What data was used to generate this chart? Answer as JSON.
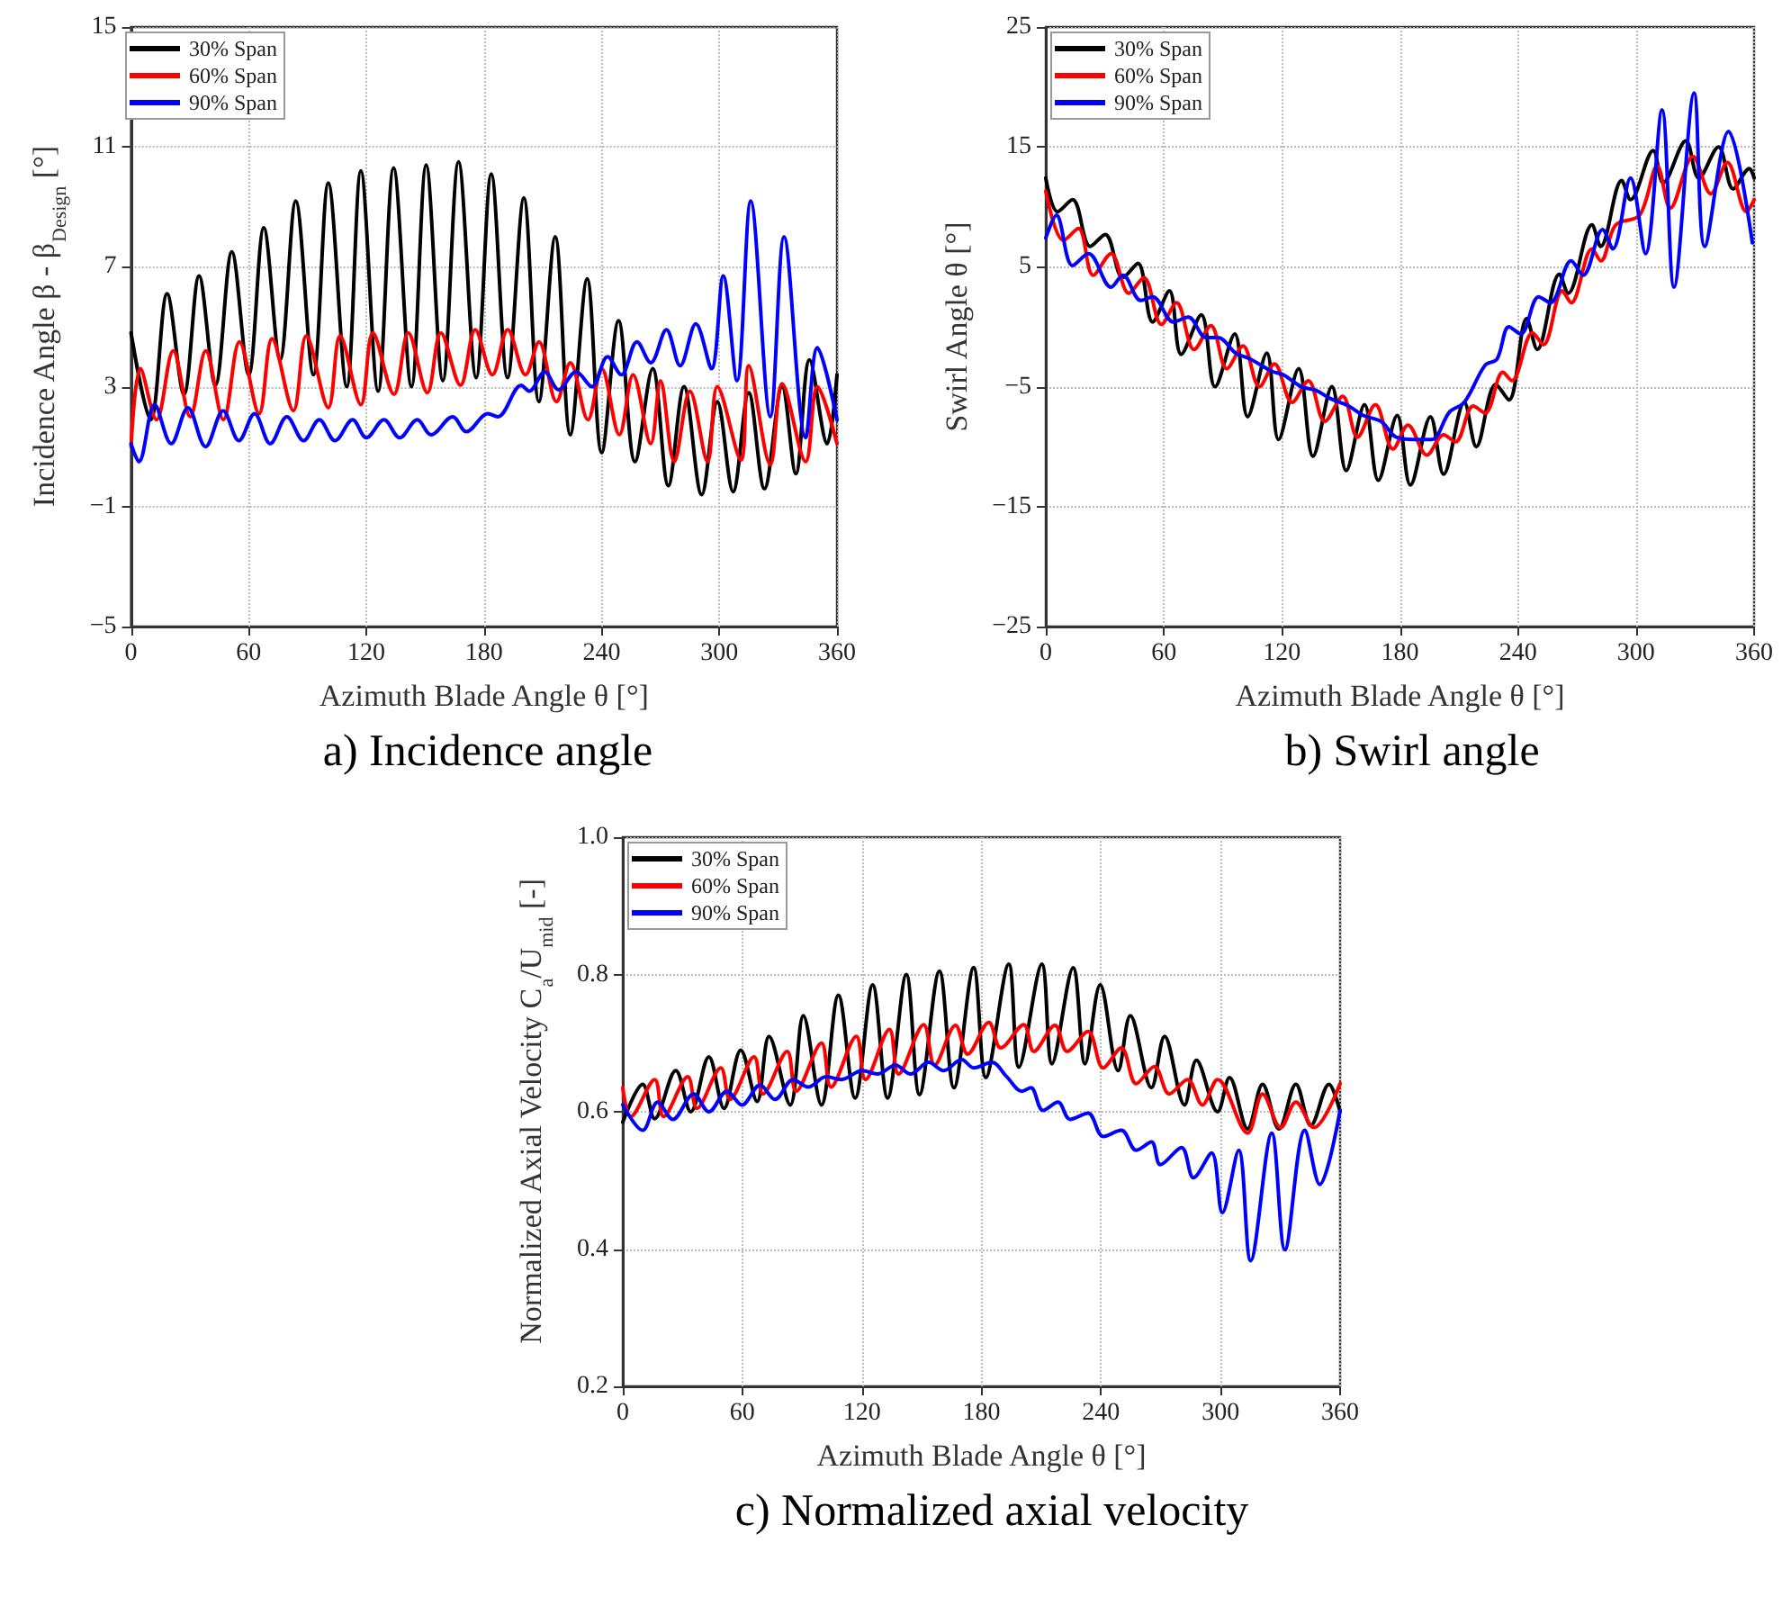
{
  "chart_data": [
    {
      "type": "line",
      "title": "a) Incidence angle",
      "xlabel": "Azimuth Blade Angle θ [°]",
      "ylabel": "Incidence Angle β - β$_{Design}$ [°]",
      "xlim": [
        0,
        360
      ],
      "xticks": [
        0,
        60,
        120,
        180,
        240,
        300,
        360
      ],
      "ylim": [
        -5,
        15
      ],
      "yticks": [
        {
          "value": -5,
          "label": "−5"
        },
        {
          "value": -1,
          "label": "−1"
        },
        3,
        7,
        11,
        15
      ],
      "grid": true,
      "legend": "top left",
      "marker": "none",
      "line_style": "solid",
      "series": [
        {
          "name": "30% Span",
          "color": "#000000",
          "x": [
            0,
            10,
            18.4,
            27,
            34.7,
            43,
            51.4,
            60,
            67.7,
            76,
            84,
            93,
            100.6,
            110,
            117.2,
            126,
            133.9,
            143,
            150.5,
            159,
            167,
            176,
            183.7,
            192,
            200.3,
            208,
            216.3,
            224,
            232.6,
            240,
            248.6,
            257,
            266,
            274,
            282,
            291,
            299,
            307,
            315,
            323,
            332,
            339,
            346,
            355,
            360
          ],
          "values": [
            4.8,
            1.9,
            6.1,
            2.75,
            6.7,
            3.05,
            7.5,
            3.4,
            8.3,
            3.9,
            9.2,
            3.4,
            9.8,
            3.0,
            10.2,
            2.85,
            10.3,
            3.0,
            10.4,
            3.2,
            10.5,
            3.3,
            10.1,
            3.3,
            9.3,
            2.5,
            8.0,
            1.4,
            6.6,
            0.8,
            5.2,
            0.5,
            3.6,
            -0.3,
            3.0,
            -0.6,
            2.5,
            -0.5,
            2.8,
            -0.4,
            3.0,
            0.1,
            3.9,
            1.1,
            3.4
          ]
        },
        {
          "name": "60% Span",
          "color": "#ff0000",
          "x": [
            0,
            4.8,
            13,
            21.5,
            30.2,
            38.1,
            47.1,
            55.3,
            65.3,
            71.9,
            82.8,
            89.4,
            100.6,
            106.6,
            117.2,
            123.3,
            134.1,
            141.4,
            151.1,
            158,
            168,
            175.5,
            184.3,
            192.1,
            201.2,
            208,
            217,
            224,
            233,
            240,
            249,
            256,
            265,
            270,
            277,
            285,
            294,
            299,
            311,
            315,
            326,
            332,
            344,
            350,
            360
          ],
          "values": [
            1.0,
            3.6,
            1.9,
            4.2,
            2.0,
            4.2,
            1.9,
            4.5,
            2.1,
            4.6,
            2.2,
            4.7,
            2.3,
            4.7,
            2.4,
            4.8,
            2.75,
            4.8,
            2.8,
            4.8,
            3.05,
            4.9,
            3.4,
            4.9,
            3.4,
            4.5,
            2.5,
            3.8,
            1.9,
            3.6,
            1.4,
            3.4,
            1.1,
            3.2,
            0.5,
            2.85,
            0.5,
            3.0,
            0.55,
            3.7,
            0.4,
            3.1,
            0.5,
            3.0,
            1.1
          ]
        },
        {
          "name": "90% Span",
          "color": "#0000ff",
          "x": [
            0,
            4,
            12,
            20.5,
            29,
            38,
            47,
            55,
            63,
            71,
            79.5,
            88,
            96,
            104,
            113,
            120,
            129,
            137,
            146,
            153,
            164,
            171,
            182,
            187,
            199,
            203,
            211,
            218,
            227,
            235,
            243,
            250,
            258,
            265,
            273,
            280,
            288,
            296,
            302,
            309,
            316,
            326,
            333,
            344,
            350,
            360
          ],
          "values": [
            1.1,
            0.5,
            2.4,
            1.1,
            2.3,
            1.0,
            2.2,
            1.2,
            2.1,
            1.1,
            2.0,
            1.2,
            1.9,
            1.2,
            1.9,
            1.3,
            1.9,
            1.3,
            1.9,
            1.4,
            2.0,
            1.5,
            2.1,
            2.0,
            3.05,
            2.85,
            3.5,
            2.9,
            3.5,
            3.0,
            4.0,
            3.4,
            4.5,
            3.8,
            4.9,
            3.7,
            5.1,
            3.6,
            6.7,
            3.2,
            9.2,
            2.0,
            8.0,
            1.3,
            4.3,
            1.9
          ]
        }
      ]
    },
    {
      "type": "line",
      "title": "b) Swirl angle",
      "xlabel": "Azimuth Blade Angle θ [°]",
      "ylabel": "Swirl Angle θ [°]",
      "xlim": [
        0,
        360
      ],
      "xticks": [
        0,
        60,
        120,
        180,
        240,
        300,
        360
      ],
      "ylim": [
        -25,
        25
      ],
      "yticks": [
        {
          "value": -25,
          "label": "−25"
        },
        {
          "value": -15,
          "label": "−15"
        },
        {
          "value": -5,
          "label": "−5"
        },
        5,
        15,
        25
      ],
      "grid": true,
      "legend": "top left",
      "marker": "none",
      "line_style": "solid",
      "series": [
        {
          "name": "30% Span",
          "color": "#000000",
          "x": [
            0,
            6,
            13.6,
            22.6,
            30.2,
            39.2,
            46.8,
            54.3,
            62.8,
            68.8,
            79,
            86,
            96,
            102.6,
            112.3,
            118.3,
            128.5,
            135.8,
            145.4,
            152.7,
            162,
            169,
            178.6,
            185.3,
            195.5,
            202.2,
            212.7,
            218.8,
            228.7,
            235.4,
            244.4,
            249.8,
            261,
            265.5,
            277.6,
            282,
            292.7,
            297.2,
            308.7,
            313.8,
            325.3,
            331.9,
            341.9,
            349.4,
            357.6,
            360
          ],
          "values": [
            12.4,
            9.6,
            10.6,
            6.7,
            7.7,
            4.1,
            5.3,
            0.4,
            3.0,
            -2.3,
            1.0,
            -5,
            -0.6,
            -7.5,
            -2.2,
            -9.4,
            -3.5,
            -10.8,
            -5,
            -12,
            -6.5,
            -12.8,
            -7.4,
            -13.2,
            -7.5,
            -12.3,
            -6.3,
            -10,
            -4.8,
            -6.1,
            0.7,
            -1.9,
            4.4,
            2.8,
            8.5,
            6.7,
            12.2,
            10.6,
            14.7,
            12,
            15.5,
            12.4,
            15,
            11.5,
            13.2,
            12.4
          ]
        },
        {
          "name": "60% Span",
          "color": "#ff0000",
          "x": [
            0,
            9,
            16.6,
            24.1,
            33.2,
            42.2,
            49.8,
            58.8,
            66.4,
            75.4,
            83.9,
            92,
            100.2,
            108.6,
            116.2,
            125.2,
            133.4,
            141.8,
            150.9,
            158.4,
            167.5,
            176.5,
            184.1,
            193.7,
            202.2,
            208.2,
            217.3,
            223.3,
            232.3,
            236.9,
            247.4,
            252.9,
            262.5,
            267,
            277.6,
            282.1,
            289.7,
            301.8,
            310.8,
            317.4,
            328.9,
            338,
            346.4,
            356.1,
            360
          ],
          "values": [
            11.3,
            7.2,
            8.2,
            4.3,
            6.1,
            2.8,
            4.1,
            0.2,
            2.0,
            -1.9,
            0.1,
            -3.5,
            -1.6,
            -5,
            -3.1,
            -6.3,
            -4.5,
            -7.9,
            -5.8,
            -9.2,
            -6.5,
            -10.2,
            -8.2,
            -10.7,
            -9.0,
            -9.6,
            -6.6,
            -7.2,
            -3.8,
            -4.5,
            -0.5,
            -1.5,
            3.0,
            2.0,
            6.5,
            5.5,
            8.5,
            9.3,
            13.4,
            9.9,
            14.2,
            11.1,
            13.7,
            9.6,
            10.6
          ]
        },
        {
          "name": "90% Span",
          "color": "#0000ff",
          "x": [
            0,
            5.4,
            13.6,
            21.7,
            33.2,
            39.2,
            48.3,
            54.3,
            64.9,
            72.4,
            81.5,
            87.5,
            96.6,
            104.1,
            114.7,
            120.7,
            129.8,
            137.3,
            144.8,
            153.9,
            161.4,
            170.5,
            178,
            187.1,
            196.1,
            205.2,
            212.7,
            223.3,
            229.3,
            235.4,
            241.4,
            250.5,
            256.5,
            267,
            273.1,
            283,
            288.2,
            297.2,
            304.8,
            313.2,
            319.3,
            329.5,
            334.9,
            347,
            359.1
          ],
          "values": [
            7.4,
            9.3,
            5.1,
            6.1,
            3.3,
            4.3,
            2.2,
            2.5,
            0.4,
            0.8,
            -0.9,
            -0.9,
            -2.2,
            -2.7,
            -3.7,
            -4.0,
            -5,
            -5.3,
            -6,
            -6.6,
            -7.4,
            -7.9,
            -9.2,
            -9.4,
            -9.4,
            -7.1,
            -6.3,
            -3.2,
            -2.7,
            0.0,
            -0.6,
            2.5,
            2.0,
            5.5,
            4.3,
            8.1,
            6.5,
            12.4,
            6.1,
            18.1,
            3.3,
            19.5,
            6.7,
            16.3,
            7.0
          ]
        }
      ]
    },
    {
      "type": "line",
      "title": "c) Normalized axial velocity",
      "xlabel": "Azimuth Blade Angle θ [°]",
      "ylabel": "Normalized Axial Velocity C$_{a}$/U$_{mid}$ [-]",
      "xlim": [
        0,
        360
      ],
      "xticks": [
        0,
        60,
        120,
        180,
        240,
        300,
        360
      ],
      "ylim": [
        0.2,
        1.0
      ],
      "yticks": [
        0.2,
        0.4,
        0.6,
        0.8,
        {
          "value": 1.0,
          "label": "1.0"
        }
      ],
      "grid": true,
      "legend": "top left",
      "marker": "none",
      "line_style": "solid",
      "series": [
        {
          "name": "30% Span",
          "color": "#000000",
          "x": [
            0,
            10,
            16,
            26.6,
            34.1,
            43.2,
            50.8,
            59.2,
            67.4,
            73.4,
            84,
            90.6,
            99.7,
            108.2,
            116.6,
            125.4,
            132.9,
            142.3,
            148.9,
            158.9,
            166.2,
            176.1,
            182.2,
            193.7,
            198.8,
            210.3,
            215.4,
            226,
            232,
            239.6,
            248.6,
            254.7,
            265.3,
            271.9,
            281.9,
            287.9,
            298.5,
            304.5,
            313.6,
            321.1,
            329.3,
            337.8,
            345.3,
            354.4,
            360
          ],
          "values": [
            0.585,
            0.64,
            0.59,
            0.66,
            0.6,
            0.68,
            0.605,
            0.69,
            0.615,
            0.71,
            0.61,
            0.74,
            0.61,
            0.77,
            0.62,
            0.785,
            0.62,
            0.8,
            0.625,
            0.805,
            0.635,
            0.81,
            0.65,
            0.815,
            0.665,
            0.815,
            0.67,
            0.81,
            0.67,
            0.785,
            0.66,
            0.74,
            0.635,
            0.71,
            0.61,
            0.675,
            0.6,
            0.65,
            0.575,
            0.64,
            0.575,
            0.64,
            0.58,
            0.64,
            0.6
          ]
        },
        {
          "name": "60% Span",
          "color": "#ff0000",
          "x": [
            0,
            4,
            16,
            20.5,
            32.6,
            37.2,
            49.2,
            53.8,
            65.9,
            70.4,
            82.5,
            87,
            99.7,
            104.5,
            117.2,
            121.8,
            133.8,
            138.4,
            151,
            156.5,
            167,
            173.1,
            183.7,
            189.7,
            201.2,
            206.3,
            216.9,
            223,
            233.5,
            241.1,
            250.2,
            257.7,
            266.8,
            274.3,
            283.4,
            290.9,
            298.5,
            313.6,
            321.1,
            330.2,
            337.8,
            346.8,
            360
          ],
          "values": [
            0.635,
            0.593,
            0.647,
            0.593,
            0.651,
            0.605,
            0.664,
            0.618,
            0.68,
            0.626,
            0.688,
            0.63,
            0.7,
            0.636,
            0.71,
            0.647,
            0.72,
            0.655,
            0.727,
            0.668,
            0.726,
            0.684,
            0.73,
            0.693,
            0.727,
            0.688,
            0.726,
            0.688,
            0.717,
            0.664,
            0.693,
            0.641,
            0.666,
            0.626,
            0.647,
            0.61,
            0.647,
            0.569,
            0.626,
            0.577,
            0.614,
            0.577,
            0.641
          ]
        },
        {
          "name": "90% Span",
          "color": "#0000ff",
          "x": [
            0,
            10,
            17.5,
            25.1,
            35.6,
            43.2,
            52.3,
            59.8,
            68.9,
            76.4,
            85.5,
            93,
            102.1,
            109.7,
            120.2,
            127.8,
            136.9,
            144.4,
            153.5,
            161,
            170.1,
            176.1,
            185.2,
            192.7,
            200.3,
            204.8,
            210.9,
            218.4,
            224.5,
            233.5,
            241.1,
            250.2,
            257.7,
            265.3,
            269.8,
            280.4,
            286.4,
            295.5,
            300.9,
            309.1,
            315.1,
            325.7,
            332.3,
            342.3,
            349.8,
            360
          ],
          "values": [
            0.61,
            0.573,
            0.614,
            0.589,
            0.626,
            0.6,
            0.63,
            0.61,
            0.639,
            0.618,
            0.647,
            0.636,
            0.651,
            0.647,
            0.66,
            0.655,
            0.668,
            0.655,
            0.672,
            0.66,
            0.676,
            0.664,
            0.672,
            0.651,
            0.63,
            0.635,
            0.602,
            0.614,
            0.589,
            0.598,
            0.564,
            0.573,
            0.544,
            0.556,
            0.523,
            0.548,
            0.504,
            0.54,
            0.453,
            0.544,
            0.383,
            0.569,
            0.399,
            0.573,
            0.494,
            0.602
          ]
        }
      ]
    }
  ]
}
